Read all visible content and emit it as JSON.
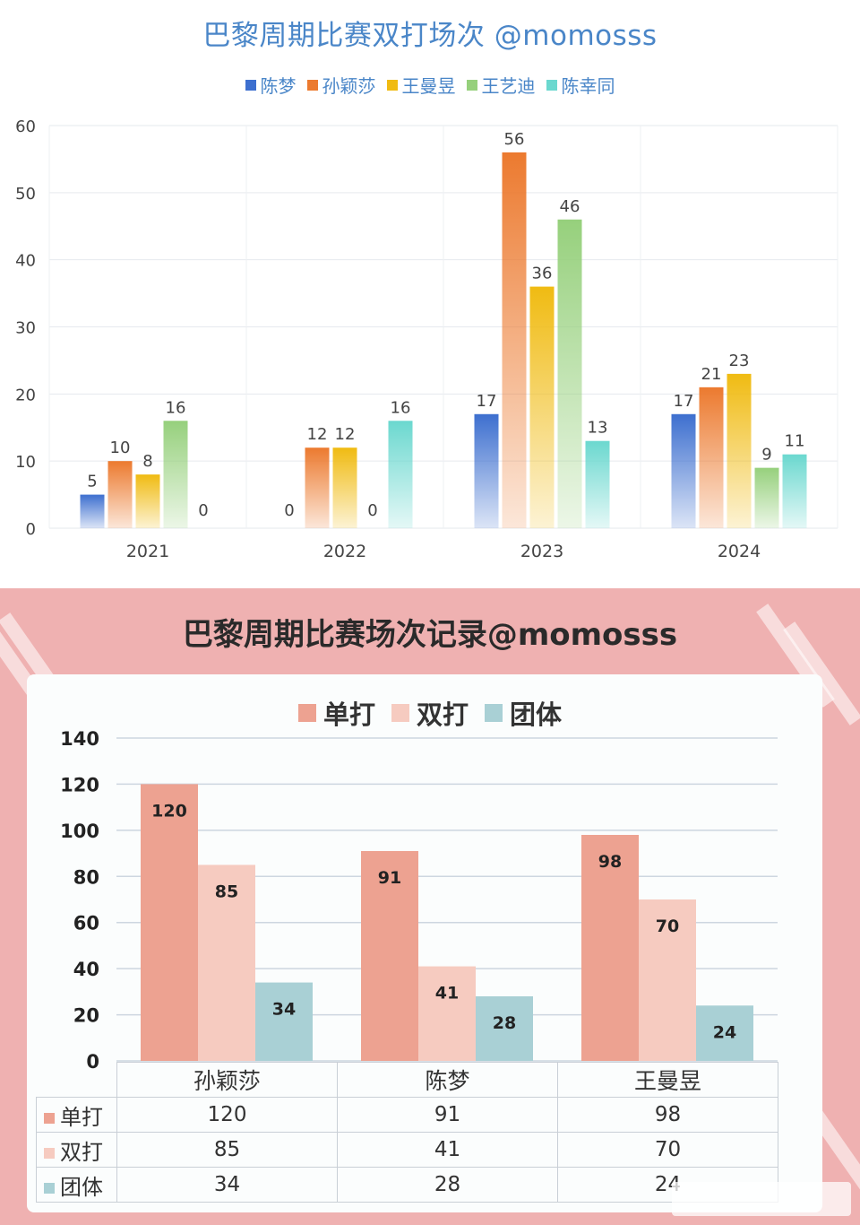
{
  "top_chart": {
    "title": "巴黎周期比赛双打场次 @momosss",
    "colors": {
      "陈梦": "#3d6fcf",
      "孙颖莎": "#ec7a2f",
      "王曼昱": "#f0bb12",
      "王艺迪": "#96d07c",
      "陈幸同": "#6bd8cf"
    }
  },
  "bottom_chart": {
    "title": "巴黎周期比赛场次记录@momosss",
    "colors": {
      "单打": "#eda291",
      "双打": "#f6cbc0",
      "团体": "#a9d0d5"
    },
    "table": {
      "columns": [
        "孙颖莎",
        "陈梦",
        "王曼昱"
      ],
      "rows": [
        {
          "label": "单打",
          "values": [
            "120",
            "91",
            "98"
          ]
        },
        {
          "label": "双打",
          "values": [
            "85",
            "41",
            "70"
          ]
        },
        {
          "label": "团体",
          "values": [
            "34",
            "28",
            "24"
          ]
        }
      ]
    }
  },
  "chart_data": [
    {
      "type": "bar",
      "title": "巴黎周期比赛双打场次 @momosss",
      "categories": [
        "2021",
        "2022",
        "2023",
        "2024"
      ],
      "series": [
        {
          "name": "陈梦",
          "values": [
            5,
            0,
            17,
            17
          ]
        },
        {
          "name": "孙颖莎",
          "values": [
            10,
            12,
            56,
            21
          ]
        },
        {
          "name": "王曼昱",
          "values": [
            8,
            12,
            36,
            23
          ]
        },
        {
          "name": "王艺迪",
          "values": [
            16,
            0,
            46,
            9
          ]
        },
        {
          "name": "陈幸同",
          "values": [
            0,
            16,
            13,
            11
          ]
        }
      ],
      "ylim": [
        0,
        60
      ],
      "yticks": [
        0,
        10,
        20,
        30,
        40,
        50,
        60
      ],
      "grid": true,
      "legend": "top"
    },
    {
      "type": "bar",
      "title": "巴黎周期比赛场次记录@momosss",
      "categories": [
        "孙颖莎",
        "陈梦",
        "王曼昱"
      ],
      "series": [
        {
          "name": "单打",
          "values": [
            120,
            91,
            98
          ]
        },
        {
          "name": "双打",
          "values": [
            85,
            41,
            70
          ]
        },
        {
          "name": "团体",
          "values": [
            34,
            28,
            24
          ]
        }
      ],
      "ylim": [
        0,
        140
      ],
      "yticks": [
        0,
        20,
        40,
        60,
        80,
        100,
        120,
        140
      ],
      "grid": true,
      "legend": "top"
    }
  ]
}
